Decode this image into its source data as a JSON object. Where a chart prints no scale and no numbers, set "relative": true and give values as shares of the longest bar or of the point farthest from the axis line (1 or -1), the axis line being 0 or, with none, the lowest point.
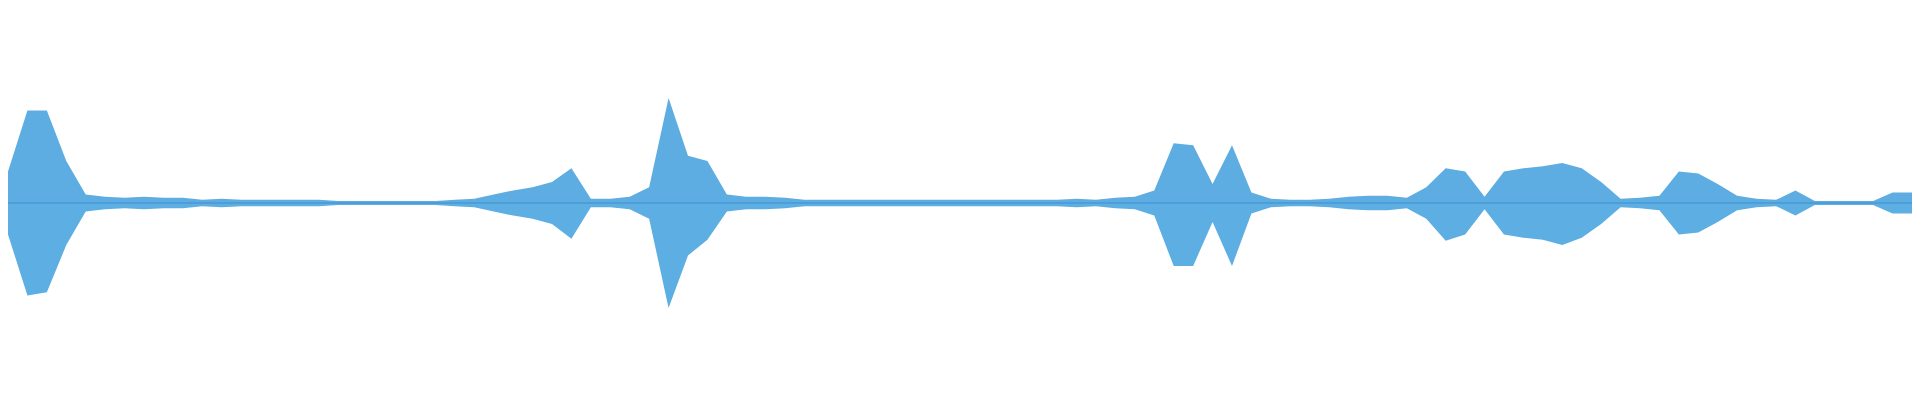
{
  "chart_data": {
    "type": "area",
    "relative": true,
    "ref_lines": [
      {
        "axis": "y",
        "value": 0,
        "color": "#3f8fcf"
      }
    ],
    "categories": [
      null,
      null,
      null,
      null,
      null,
      null,
      null,
      null,
      null,
      null,
      null,
      null,
      null,
      null,
      null,
      null,
      null,
      null,
      null,
      null,
      null,
      null,
      null,
      null,
      null,
      null,
      null,
      null,
      null,
      null,
      null,
      null,
      null,
      null,
      null,
      null,
      null,
      null,
      null,
      null,
      null,
      null,
      null,
      null,
      null,
      null,
      null,
      null,
      null,
      null,
      null,
      null,
      null,
      null,
      null,
      null,
      null,
      null,
      null,
      null,
      null,
      null,
      null,
      null,
      null,
      null,
      null,
      null,
      null,
      null,
      null,
      null,
      null,
      null,
      null,
      null,
      null,
      null,
      null,
      null,
      null,
      null,
      null,
      null,
      null,
      null,
      null,
      null,
      null,
      null,
      null,
      null,
      null,
      null,
      null,
      null,
      null,
      null,
      null
    ],
    "series": [
      {
        "color": "#5dade2",
        "values": [
          0.3,
          0.88,
          0.88,
          0.4,
          0.08,
          0.06,
          0.05,
          0.06,
          0.05,
          0.05,
          0.03,
          0.04,
          0.03,
          0.03,
          0.03,
          0.03,
          0.03,
          0.02,
          0.02,
          0.02,
          0.02,
          0.02,
          0.02,
          0.03,
          0.04,
          0.08,
          0.12,
          0.15,
          0.2,
          0.33,
          0.04,
          0.04,
          0.06,
          0.15,
          1,
          0.45,
          0.4,
          0.08,
          0.06,
          0.06,
          0.05,
          0.03,
          0.03,
          0.03,
          0.03,
          0.03,
          0.03,
          0.03,
          0.03,
          0.03,
          0.03,
          0.03,
          0.03,
          0.03,
          0.03,
          0.04,
          0.03,
          0.05,
          0.06,
          0.12,
          0.57,
          0.55,
          0.18,
          0.55,
          0.1,
          0.04,
          0.03,
          0.03,
          0.04,
          0.06,
          0.07,
          0.07,
          0.05,
          0.15,
          0.33,
          0.3,
          0.06,
          0.3,
          0.33,
          0.35,
          0.38,
          0.33,
          0.2,
          0.04,
          0.05,
          0.07,
          0.3,
          0.28,
          0.18,
          0.07,
          0.04,
          0.03,
          0.12,
          0.02,
          0.02,
          0.02,
          0.02,
          0.1,
          0.1
        ]
      },
      {
        "color": "#5caee3",
        "values": [
          -0.3,
          -0.88,
          -0.85,
          -0.4,
          -0.08,
          -0.06,
          -0.05,
          -0.06,
          -0.05,
          -0.05,
          -0.03,
          -0.04,
          -0.03,
          -0.03,
          -0.03,
          -0.03,
          -0.03,
          -0.02,
          -0.02,
          -0.02,
          -0.02,
          -0.02,
          -0.02,
          -0.03,
          -0.04,
          -0.08,
          -0.12,
          -0.15,
          -0.2,
          -0.34,
          -0.04,
          -0.04,
          -0.06,
          -0.15,
          -1,
          -0.5,
          -0.35,
          -0.08,
          -0.06,
          -0.06,
          -0.05,
          -0.03,
          -0.03,
          -0.03,
          -0.03,
          -0.03,
          -0.03,
          -0.03,
          -0.03,
          -0.03,
          -0.03,
          -0.03,
          -0.03,
          -0.03,
          -0.03,
          -0.04,
          -0.03,
          -0.05,
          -0.06,
          -0.12,
          -0.6,
          -0.6,
          -0.18,
          -0.6,
          -0.1,
          -0.04,
          -0.03,
          -0.03,
          -0.04,
          -0.06,
          -0.07,
          -0.07,
          -0.05,
          -0.15,
          -0.36,
          -0.3,
          -0.06,
          -0.3,
          -0.33,
          -0.35,
          -0.4,
          -0.33,
          -0.2,
          -0.04,
          -0.05,
          -0.07,
          -0.3,
          -0.28,
          -0.18,
          -0.07,
          -0.04,
          -0.03,
          -0.12,
          -0.02,
          -0.02,
          -0.02,
          -0.02,
          -0.1,
          -0.1
        ]
      }
    ]
  }
}
